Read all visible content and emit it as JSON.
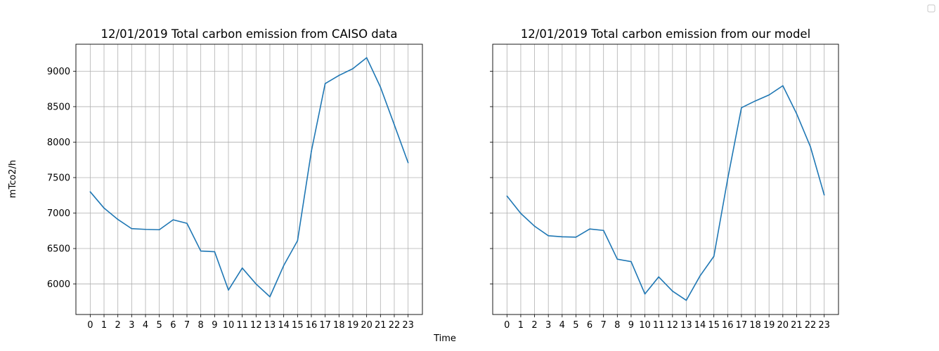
{
  "figure": {
    "supxlabel": "Time",
    "supylabel": "mTco2/h",
    "legend_placement": "top-right",
    "line_color": "#1f77b4",
    "grid_color": "#b0b0b0"
  },
  "chart_data": [
    {
      "type": "line",
      "title": "12/01/2019 Total carbon emission from CAISO data",
      "xlabel": "",
      "ylabel": "",
      "grid": true,
      "x": [
        0,
        1,
        2,
        3,
        4,
        5,
        6,
        7,
        8,
        9,
        10,
        11,
        12,
        13,
        14,
        15,
        16,
        17,
        18,
        19,
        20,
        21,
        22,
        23
      ],
      "xticks": [
        "0",
        "1",
        "2",
        "3",
        "4",
        "5",
        "6",
        "7",
        "8",
        "9",
        "10",
        "11",
        "12",
        "13",
        "14",
        "15",
        "16",
        "17",
        "18",
        "19",
        "20",
        "21",
        "22",
        "23"
      ],
      "yticks": [
        6000,
        6500,
        7000,
        7500,
        8000,
        8500,
        9000
      ],
      "ylim": [
        5570,
        9380
      ],
      "series": [
        {
          "values": [
            7300,
            7070,
            6910,
            6780,
            6770,
            6765,
            6905,
            6855,
            6465,
            6455,
            5915,
            6225,
            6000,
            5820,
            6260,
            6610,
            7870,
            8825,
            8940,
            9035,
            9190,
            8775,
            8245,
            7710
          ]
        }
      ]
    },
    {
      "type": "line",
      "title": "12/01/2019 Total carbon emission from our model",
      "xlabel": "",
      "ylabel": "",
      "grid": true,
      "x": [
        0,
        1,
        2,
        3,
        4,
        5,
        6,
        7,
        8,
        9,
        10,
        11,
        12,
        13,
        14,
        15,
        16,
        17,
        18,
        19,
        20,
        21,
        22,
        23
      ],
      "xticks": [
        "0",
        "1",
        "2",
        "3",
        "4",
        "5",
        "6",
        "7",
        "8",
        "9",
        "10",
        "11",
        "12",
        "13",
        "14",
        "15",
        "16",
        "17",
        "18",
        "19",
        "20",
        "21",
        "22",
        "23"
      ],
      "yticks": [
        6000,
        6500,
        7000,
        7500,
        8000,
        8500,
        9000
      ],
      "ylim": [
        5570,
        9380
      ],
      "series": [
        {
          "values": [
            7240,
            6995,
            6815,
            6680,
            6665,
            6660,
            6775,
            6755,
            6350,
            6315,
            5860,
            6100,
            5900,
            5770,
            6115,
            6390,
            7480,
            8485,
            8580,
            8665,
            8795,
            8400,
            7935,
            7255
          ]
        }
      ]
    }
  ]
}
